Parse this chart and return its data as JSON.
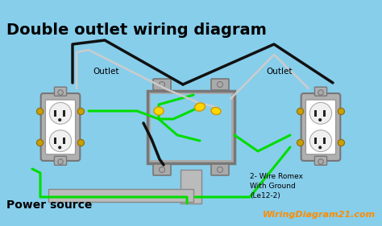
{
  "title": "Double outlet wiring diagram",
  "bg_color": "#87CEEB",
  "wire_black": "#111111",
  "wire_green": "#00DD00",
  "wire_white": "#CCCCCC",
  "wire_yellow": "#FFD700",
  "label_outlet_left": "Outlet",
  "label_outlet_right": "Outlet",
  "label_power": "Power source",
  "label_wire": "2- Wire Romex\nWith Ground\n(Le12-2)",
  "label_site": "WiringDiagram21.com",
  "title_fontsize": 14,
  "annotation_fontsize": 7,
  "outlet_gray": "#B0B0B0",
  "outlet_white": "#FFFFFF",
  "box_gray": "#AAAAAA",
  "conduit_gray": "#BBBBBB"
}
